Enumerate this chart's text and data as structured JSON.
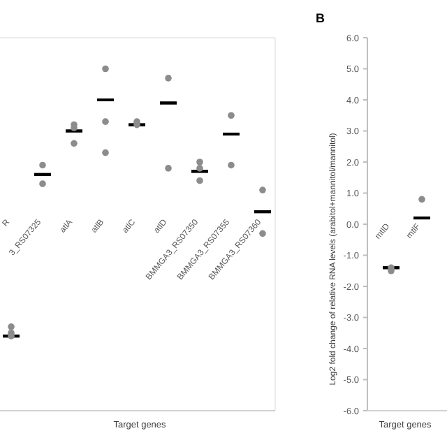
{
  "chart_data": [
    {
      "type": "scatter",
      "xlabel": "Target genes",
      "categories": [
        "R",
        "3_RS07325",
        "atlA",
        "atlB",
        "atlC",
        "atlD",
        "BMMGA3_RS07350",
        "BMMGA3_RS07355",
        "BMMGA3_RS07360"
      ],
      "ylim": [
        -6,
        6
      ],
      "tick_labels": "x",
      "series": [
        {
          "type": "scatter",
          "marker": "circle",
          "color": "#8c8c8c",
          "x": [
            "R",
            "R",
            "R",
            "3_RS07325",
            "3_RS07325",
            "atlA",
            "atlA",
            "atlA",
            "atlB",
            "atlB",
            "atlB",
            "atlC",
            "atlC",
            "atlD",
            "atlD",
            "BMMGA3_RS07350",
            "BMMGA3_RS07350",
            "BMMGA3_RS07350",
            "BMMGA3_RS07355",
            "BMMGA3_RS07355",
            "BMMGA3_RS07360",
            "BMMGA3_RS07360"
          ],
          "values": [
            -3.3,
            -3.5,
            -3.6,
            1.9,
            1.3,
            3.2,
            3.1,
            2.6,
            5.0,
            3.3,
            2.3,
            3.3,
            3.2,
            4.7,
            1.8,
            2.0,
            1.8,
            1.4,
            3.5,
            1.9,
            1.1,
            -0.3
          ]
        },
        {
          "type": "box",
          "color": "#000000",
          "boxes": [
            {
              "low": -3.6,
              "q1": -3.6,
              "median": -3.6,
              "q3": -3.6,
              "high": -3.6
            },
            {
              "low": 1.6,
              "q1": 1.6,
              "median": 1.6,
              "q3": 1.6,
              "high": 1.6
            },
            {
              "low": 3.0,
              "q1": 3.0,
              "median": 3.0,
              "q3": 3.0,
              "high": 3.0
            },
            {
              "low": 4.0,
              "q1": 4.0,
              "median": 4.0,
              "q3": 4.0,
              "high": 4.0
            },
            {
              "low": 3.2,
              "q1": 3.2,
              "median": 3.2,
              "q3": 3.2,
              "high": 3.2
            },
            {
              "low": 3.9,
              "q1": 3.9,
              "median": 3.9,
              "q3": 3.9,
              "high": 3.9
            },
            {
              "low": 1.7,
              "q1": 1.7,
              "median": 1.7,
              "q3": 1.7,
              "high": 1.7
            },
            {
              "low": 2.9,
              "q1": 2.9,
              "median": 2.9,
              "q3": 2.9,
              "high": 2.9
            },
            {
              "low": 0.4,
              "q1": 0.4,
              "median": 0.4,
              "q3": 0.4,
              "high": 0.4
            }
          ]
        }
      ]
    },
    {
      "type": "scatter",
      "xlabel": "Target genes",
      "ylabel": "Log2 fold change of relative RNA levels (arabitol+mannitol/mannitol)",
      "annotations": [
        "B"
      ],
      "categories": [
        "mtlD",
        "mtlF"
      ],
      "ylim": [
        -6,
        6
      ],
      "yticks": [
        {
          "value": 6,
          "label": "6.0"
        },
        {
          "value": 5,
          "label": "5.0"
        },
        {
          "value": 4,
          "label": "4.0"
        },
        {
          "value": 3,
          "label": "3.0"
        },
        {
          "value": 2,
          "label": "2.0"
        },
        {
          "value": 1,
          "label": "1.0"
        },
        {
          "value": 0,
          "label": "0.0"
        },
        {
          "value": -1,
          "label": "-1.0"
        },
        {
          "value": -2,
          "label": "-2.0"
        },
        {
          "value": -3,
          "label": "-3.0"
        },
        {
          "value": -4,
          "label": "-4.0"
        },
        {
          "value": -5,
          "label": "-5.0"
        },
        {
          "value": -6,
          "label": "-6.0"
        }
      ],
      "series": [
        {
          "type": "scatter",
          "marker": "circle",
          "color": "#8c8c8c",
          "x": [
            "mtlD",
            "mtlD",
            "mtlF"
          ],
          "values": [
            -1.4,
            -1.5,
            0.8
          ]
        },
        {
          "type": "box",
          "color": "#000000",
          "boxes": [
            {
              "low": -1.4,
              "q1": -1.4,
              "median": -1.4,
              "q3": -1.4,
              "high": -1.4
            },
            {
              "low": 0.2,
              "q1": 0.2,
              "median": 0.2,
              "q3": 0.2,
              "high": 0.2
            }
          ]
        }
      ]
    }
  ]
}
